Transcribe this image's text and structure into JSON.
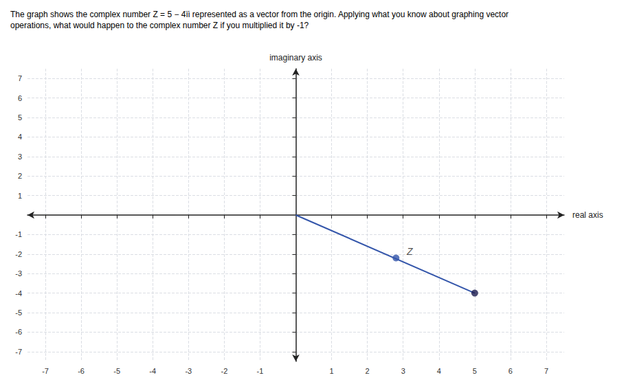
{
  "chart_data": {
    "type": "line",
    "title": "The graph shows the complex number Z = 5 − 4ïi represented as a vector from the origin. Applying what you know about graphing vector\noperations, what would happen to the complex number Z if you multiplied it by -1?",
    "x_label": "real axis",
    "y_label": "imaginary axis",
    "xlim": [
      -7.5,
      7.5
    ],
    "ylim": [
      -7.5,
      7.5
    ],
    "xticks": [
      -7,
      -6,
      -5,
      -4,
      -3,
      -2,
      -1,
      1,
      2,
      3,
      4,
      5,
      6,
      7
    ],
    "yticks": [
      -7,
      -6,
      -5,
      -4,
      -3,
      -2,
      -1,
      1,
      2,
      3,
      4,
      5,
      6,
      7
    ],
    "grid": true,
    "series": [
      {
        "type": "line",
        "x": [
          0,
          5
        ],
        "values": [
          0,
          -4
        ],
        "color": "#3355aa"
      },
      {
        "type": "scatter",
        "marker": "circle",
        "x": [
          2.8
        ],
        "values": [
          -2.2
        ],
        "color": "#3355aa"
      },
      {
        "type": "scatter",
        "marker": "circle",
        "x": [
          5
        ],
        "values": [
          -4
        ],
        "color": "#1a1a4e"
      }
    ],
    "annotations": [
      {
        "text": "Z",
        "x": 3.1,
        "y": -1.85
      }
    ]
  }
}
